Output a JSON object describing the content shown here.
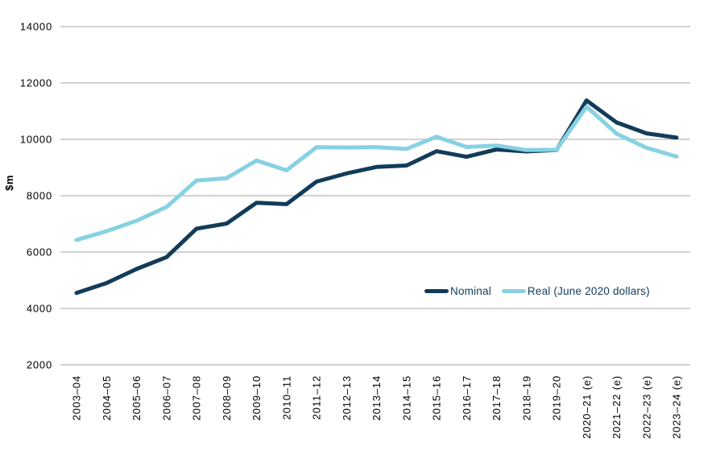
{
  "chart_data": {
    "type": "line",
    "title": "",
    "ylabel": "$m",
    "xlabel": "",
    "ylim": [
      2000,
      14000
    ],
    "yticks": [
      2000,
      4000,
      6000,
      8000,
      10000,
      12000,
      14000
    ],
    "grid": true,
    "legend_position": "inside-bottom-right",
    "categories": [
      "2003–04",
      "2004–05",
      "2005–06",
      "2006–07",
      "2007–08",
      "2008–09",
      "2009–10",
      "2010–11",
      "2011–12",
      "2012–13",
      "2013–14",
      "2014–15",
      "2015–16",
      "2016–17",
      "2017–18",
      "2018–19",
      "2019–20",
      "2020–21 (e)",
      "2021–22 (e)",
      "2022–23 (e)",
      "2023–24 (e)"
    ],
    "series": [
      {
        "name": "Nominal",
        "color": "#123c59",
        "values": [
          4550,
          4900,
          5400,
          5820,
          6830,
          7010,
          7750,
          7700,
          8500,
          8790,
          9020,
          9070,
          9580,
          9380,
          9640,
          9570,
          9620,
          11380,
          10600,
          10210,
          10060
        ]
      },
      {
        "name": "Real (June 2020 dollars)",
        "color": "#87d1e2",
        "values": [
          6430,
          6740,
          7110,
          7600,
          8540,
          8620,
          9250,
          8900,
          9720,
          9710,
          9720,
          9660,
          10090,
          9730,
          9780,
          9620,
          9630,
          11160,
          10200,
          9700,
          9390
        ]
      }
    ],
    "colors": {
      "gridline": "#a6a6a6",
      "tick_text": "#000000",
      "legend_text": "#123c59",
      "background": "#ffffff"
    }
  }
}
